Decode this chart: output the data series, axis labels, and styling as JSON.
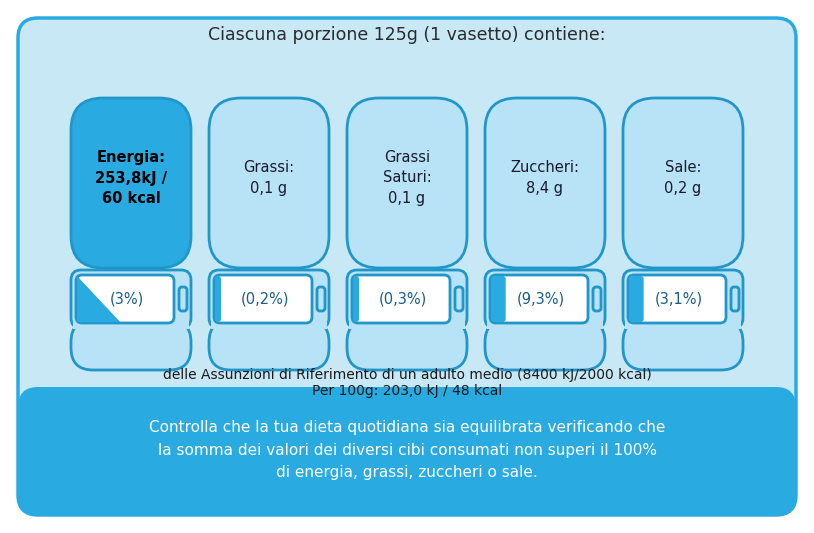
{
  "title": "Ciascuna porzione 125g (1 vasetto) contiene:",
  "bg_outer": "#ffffff",
  "bg_main": "#c8e8f5",
  "bg_bottom_bar": "#29abe2",
  "border_color": "#29abe2",
  "battery_fill_color": "#29abe2",
  "battery_light_color": "#7dcff0",
  "battery_lighter_color": "#b8e2f5",
  "battery_border_color": "#2196c8",
  "white": "#ffffff",
  "dark_text": "#1a1a1a",
  "blue_text": "#1a6ea8",
  "batteries": [
    {
      "top_text": "Energia:\n253,8kJ /\n60 kcal",
      "bottom_text": "(3%)",
      "bold": true,
      "fill_percent": 0.03,
      "top_filled": true
    },
    {
      "top_text": "Grassi:\n0,1 g",
      "bottom_text": "(0,2%)",
      "bold": false,
      "fill_percent": 0.002,
      "top_filled": false
    },
    {
      "top_text": "Grassi\nSaturi:\n0,1 g",
      "bottom_text": "(0,3%)",
      "bold": false,
      "fill_percent": 0.003,
      "top_filled": false
    },
    {
      "top_text": "Zuccheri:\n8,4 g",
      "bottom_text": "(9,3%)",
      "bold": false,
      "fill_percent": 0.093,
      "top_filled": false
    },
    {
      "top_text": "Sale:\n0,2 g",
      "bottom_text": "(3,1%)",
      "bold": false,
      "fill_percent": 0.031,
      "top_filled": false
    }
  ],
  "footnote1": "delle Assunzioni di Riferimento di un adulto medio (8400 kJ/2000 kcal)",
  "footnote2": "Per 100g: 203,0 kJ / 48 kcal",
  "bottom_bar_text": "Controlla che la tua dieta quotidiana sia equilibrata verificando che\nla somma dei valori dei diversi cibi consumati non superi il 100%\ndi energia, grassi, zuccheri o sale."
}
